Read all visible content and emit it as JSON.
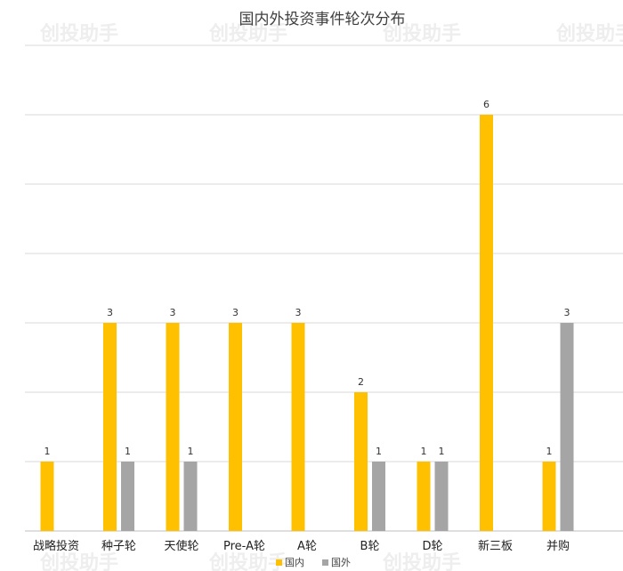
{
  "chart_data": {
    "type": "bar",
    "title": "国内外投资事件轮次分布",
    "categories": [
      "战略投资",
      "种子轮",
      "天使轮",
      "Pre-A轮",
      "A轮",
      "B轮",
      "D轮",
      "新三板",
      "并购"
    ],
    "series": [
      {
        "name": "国内",
        "color": "#FFC000",
        "values": [
          1,
          3,
          3,
          3,
          3,
          2,
          1,
          6,
          1
        ]
      },
      {
        "name": "国外",
        "color": "#A5A5A5",
        "values": [
          null,
          1,
          1,
          null,
          null,
          1,
          1,
          null,
          3
        ]
      }
    ],
    "ylim": [
      0,
      7
    ],
    "grid": true,
    "legend": "bottom-center",
    "watermark_text": "创投助手"
  }
}
